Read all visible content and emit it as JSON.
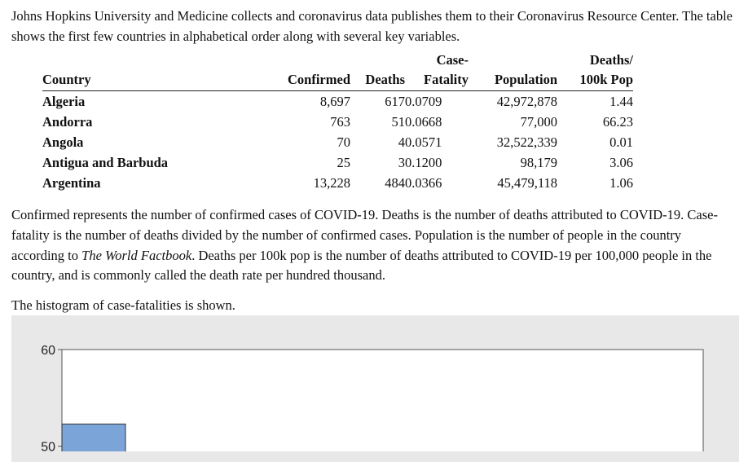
{
  "intro": "Johns Hopkins University and Medicine collects and coronavirus data publishes them to their Coronavirus Resource Center. The table shows the first few countries in alphabetical order along with several key variables.",
  "table": {
    "headers": {
      "country": [
        "Country"
      ],
      "confirmed": [
        "Confirmed"
      ],
      "deaths": [
        "Deaths"
      ],
      "case_fatality": [
        "Case-",
        "Fatality"
      ],
      "population": [
        "Population"
      ],
      "deaths_per_100k": [
        "Deaths/",
        "100k Pop"
      ]
    },
    "rows": [
      {
        "country": "Algeria",
        "confirmed": "8,697",
        "deaths": "617",
        "case_fatality": "0.0709",
        "population": "42,972,878",
        "deaths_per_100k": "1.44"
      },
      {
        "country": "Andorra",
        "confirmed": "763",
        "deaths": "51",
        "case_fatality": "0.0668",
        "population": "77,000",
        "deaths_per_100k": "66.23"
      },
      {
        "country": "Angola",
        "confirmed": "70",
        "deaths": "4",
        "case_fatality": "0.0571",
        "population": "32,522,339",
        "deaths_per_100k": "0.01"
      },
      {
        "country": "Antigua and Barbuda",
        "confirmed": "25",
        "deaths": "3",
        "case_fatality": "0.1200",
        "population": "98,179",
        "deaths_per_100k": "3.06"
      },
      {
        "country": "Argentina",
        "confirmed": "13,228",
        "deaths": "484",
        "case_fatality": "0.0366",
        "population": "45,479,118",
        "deaths_per_100k": "1.06"
      }
    ]
  },
  "notes": {
    "p1": "Confirmed represents the number of confirmed cases of COVID-19. Deaths is the number of deaths attributed to COVID-19. Case-fatality is the number of deaths divided by the number of confirmed cases. Population is the number of people in the country according to ",
    "source": "The World Factbook",
    "p2": ". Deaths per 100k pop is the number of deaths attributed to COVID-19 per 100,000 people in the country, and is commonly called the death rate per hundred thousand."
  },
  "histogram_intro": "The histogram of case-fatalities is shown.",
  "chart_data": {
    "type": "bar",
    "title": "",
    "xlabel": "",
    "ylabel": "",
    "yticks": [
      50,
      60
    ],
    "ylim": [
      48.2,
      60
    ],
    "bars": [
      {
        "value": 52.3
      }
    ],
    "colors": {
      "bar": "#7ba4d9",
      "bar_edge": "#333333",
      "panel": "#e8e8e8",
      "plot_bg": "#ffffff"
    }
  }
}
